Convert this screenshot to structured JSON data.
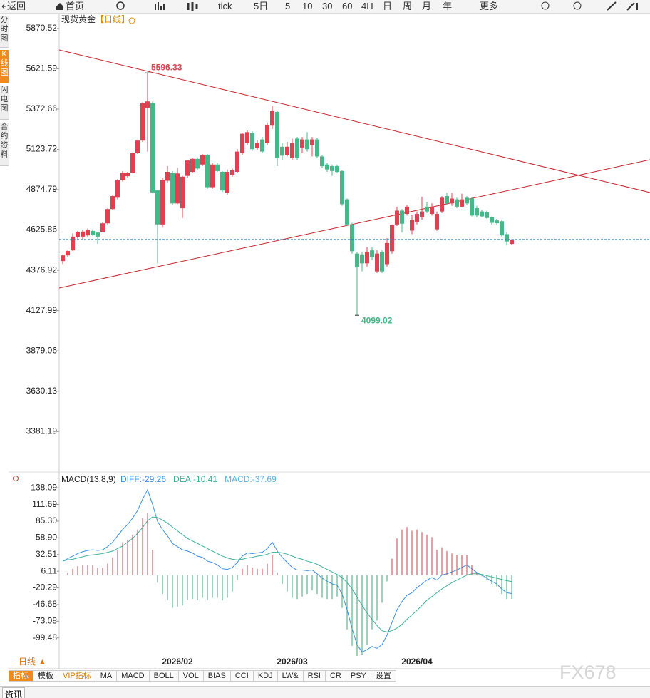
{
  "toolbar": [
    "返回",
    "首页",
    "tick",
    "5日",
    "5",
    "10",
    "30",
    "60",
    "4H",
    "日",
    "周",
    "月",
    "年",
    "更多"
  ],
  "sidebar": [
    "分时图",
    "K线图",
    "闪电图",
    "合约资料"
  ],
  "period": "日线 ▲",
  "tabs": [
    "指标",
    "模板",
    "VIP指标",
    "MA",
    "MACD",
    "BOLL",
    "VOL",
    "BIAS",
    "CCI",
    "KDJ",
    "LW&",
    "RSI",
    "CR",
    "PSY",
    "设置"
  ],
  "footer_tab": "资讯",
  "watermark": "FX678",
  "chart_data": [
    {
      "type": "candlestick",
      "title": "现货黄金",
      "subtitle": "【日线】",
      "up_color": "#e0404f",
      "down_color": "#44b886",
      "high_label": "5596.33",
      "low_label": "4099.02",
      "categories": [
        null,
        null,
        null,
        null,
        null,
        null,
        null,
        null,
        null,
        null,
        null,
        null,
        null,
        null,
        null,
        null,
        null,
        null,
        null,
        null,
        null,
        null,
        null,
        "2026/02",
        null,
        null,
        null,
        null,
        null,
        null,
        null,
        null,
        null,
        null,
        null,
        null,
        null,
        null,
        null,
        null,
        null,
        null,
        null,
        null,
        null,
        null,
        "2026/03",
        null,
        null,
        null,
        null,
        null,
        null,
        null,
        null,
        null,
        null,
        null,
        null,
        null,
        null,
        null,
        null,
        null,
        null,
        null,
        null,
        null,
        null,
        null,
        null,
        "2026/04",
        null,
        null,
        null,
        null,
        null,
        null,
        null,
        null,
        null,
        null,
        null,
        null,
        null,
        null,
        null,
        null,
        null,
        null,
        null
      ],
      "open": [
        4434,
        4469,
        4500,
        4580,
        4585,
        4592,
        4620,
        4610,
        4615,
        4667,
        4755,
        4825,
        4932,
        4958,
        4980,
        5100,
        5178,
        5380,
        5410,
        4870,
        4660,
        4930,
        4980,
        4790,
        4760,
        4960,
        4985,
        5065,
        5030,
        5090,
        4890,
        5030,
        4985,
        4855,
        4965,
        4985,
        5100,
        5165,
        5225,
        5130,
        5185,
        5165,
        5270,
        5355,
        5140,
        5090,
        5070,
        5190,
        5135,
        5185,
        5150,
        5185,
        5080,
        5030,
        5020,
        5020,
        4990,
        4815,
        4660,
        4480,
        4475,
        4420,
        4500,
        4370,
        4490,
        4415,
        4495,
        4660,
        4745,
        4725,
        4622,
        4675,
        4705,
        4770,
        4725,
        4630,
        4740,
        4835,
        4790,
        4815,
        4770,
        4825,
        4820,
        4760,
        4740,
        4735,
        4705,
        4685,
        4680,
        4600,
        4540
      ],
      "high": [
        4475,
        4500,
        4605,
        4620,
        4625,
        4635,
        4630,
        4615,
        4672,
        4760,
        4840,
        4940,
        4990,
        4985,
        5105,
        5185,
        5415,
        5596.33,
        5420,
        4870,
        4950,
        5020,
        4990,
        5010,
        4960,
        5060,
        5070,
        5075,
        5095,
        5095,
        5040,
        5040,
        4990,
        5000,
        5005,
        5125,
        5225,
        5240,
        5235,
        5180,
        5200,
        5290,
        5392,
        5360,
        5165,
        5170,
        5190,
        5200,
        5200,
        5230,
        5200,
        5195,
        5090,
        5040,
        5030,
        5030,
        4995,
        4820,
        4670,
        4490,
        4490,
        4520,
        4520,
        4500,
        4500,
        4575,
        4660,
        4770,
        4755,
        4780,
        4720,
        4740,
        4830,
        4800,
        4790,
        4740,
        4835,
        4855,
        4855,
        4825,
        4850,
        4835,
        4830,
        4775,
        4750,
        4745,
        4710,
        4695,
        4690,
        4610,
        4570
      ],
      "low": [
        4416,
        4460,
        4495,
        4570,
        4570,
        4585,
        4590,
        4540,
        4610,
        4660,
        4750,
        4815,
        4925,
        4950,
        4975,
        5095,
        5170,
        5110,
        4852,
        4420,
        4640,
        4920,
        4780,
        4785,
        4700,
        4950,
        4980,
        4995,
        5020,
        4880,
        4880,
        4985,
        4860,
        4845,
        4955,
        4980,
        5090,
        5150,
        5115,
        5120,
        5100,
        5150,
        5250,
        5020,
        5060,
        5080,
        5060,
        5060,
        5100,
        5110,
        5080,
        5070,
        5010,
        4985,
        4960,
        4975,
        4775,
        4650,
        4480,
        4099.02,
        4370,
        4400,
        4440,
        4360,
        4360,
        4400,
        4480,
        4650,
        4610,
        4715,
        4600,
        4660,
        4690,
        4730,
        4715,
        4620,
        4730,
        4780,
        4775,
        4760,
        4765,
        4780,
        4710,
        4705,
        4705,
        4695,
        4660,
        4660,
        4585,
        4530,
        4535
      ],
      "close": [
        4469,
        4496,
        4585,
        4614,
        4616,
        4627,
        4595,
        4585,
        4667,
        4755,
        4835,
        4932,
        4980,
        4980,
        5100,
        5178,
        5408,
        5420,
        4858,
        4660,
        4935,
        4985,
        4790,
        4975,
        4955,
        5055,
        5065,
        5005,
        5090,
        4890,
        5030,
        4990,
        4870,
        4985,
        4995,
        5110,
        5220,
        5230,
        5125,
        5165,
        5110,
        5275,
        5360,
        5070,
        5085,
        5140,
        5165,
        5070,
        5185,
        5125,
        5185,
        5080,
        5020,
        5000,
        4990,
        4985,
        4785,
        4660,
        4495,
        4395,
        4420,
        4492,
        4460,
        4480,
        4370,
        4545,
        4655,
        4745,
        4665,
        4770,
        4690,
        4725,
        4740,
        4740,
        4770,
        4725,
        4825,
        4790,
        4820,
        4770,
        4815,
        4790,
        4715,
        4715,
        4710,
        4700,
        4670,
        4668,
        4592,
        4555,
        4567
      ],
      "ylim": [
        3140,
        5967
      ],
      "yticks": [
        5870.52,
        5621.59,
        5372.66,
        5123.72,
        4874.79,
        4625.86,
        4376.92,
        4127.99,
        3879.06,
        3630.13,
        3381.19
      ]
    },
    {
      "type": "macd",
      "title": "MACD(13,8,9)",
      "series": [
        {
          "name": "DIFF:-29.26",
          "color": "#3a8ee6",
          "values": [
            22,
            26,
            30,
            34,
            37,
            39,
            40,
            39,
            40,
            45,
            52,
            62,
            72,
            80,
            90,
            102,
            120,
            135,
            112,
            85,
            72,
            62,
            50,
            45,
            40,
            38,
            35,
            30,
            28,
            22,
            20,
            16,
            10,
            9,
            12,
            20,
            30,
            35,
            34,
            35,
            36,
            42,
            52,
            38,
            28,
            20,
            12,
            8,
            8,
            7,
            8,
            2,
            -5,
            -10,
            -14,
            -16,
            -30,
            -55,
            -85,
            -110,
            -122,
            -118,
            -113,
            -116,
            -110,
            -95,
            -75,
            -55,
            -42,
            -32,
            -28,
            -20,
            -14,
            -8,
            -4,
            -8,
            0,
            2,
            5,
            8,
            12,
            16,
            10,
            4,
            0,
            -5,
            -10,
            -14,
            -22,
            -28,
            -29.26
          ]
        },
        {
          "name": "DEA:-10.41",
          "color": "#3cb39a",
          "values": [
            22,
            24,
            25,
            27,
            29,
            31,
            32,
            33,
            34,
            36,
            38,
            42,
            46,
            52,
            58,
            66,
            75,
            86,
            92,
            91,
            87,
            82,
            76,
            70,
            64,
            58,
            54,
            50,
            46,
            42,
            38,
            34,
            30,
            27,
            25,
            24,
            25,
            27,
            28,
            30,
            31,
            33,
            36,
            36,
            35,
            33,
            30,
            27,
            25,
            22,
            20,
            17,
            13,
            9,
            5,
            1,
            -4,
            -12,
            -22,
            -35,
            -48,
            -60,
            -70,
            -80,
            -88,
            -90,
            -88,
            -84,
            -78,
            -70,
            -63,
            -56,
            -48,
            -40,
            -34,
            -28,
            -22,
            -17,
            -12,
            -8,
            -4,
            0,
            2,
            2,
            1,
            -1,
            -3,
            -5,
            -7,
            -9,
            -10.41
          ]
        },
        {
          "name": "MACD:-37.69",
          "type": "histogram",
          "color": "#5ab0e0",
          "up_color": "#c9434f",
          "down_color": "#3fa676",
          "values": [
            0,
            4,
            10,
            14,
            16,
            16,
            16,
            12,
            12,
            18,
            28,
            40,
            52,
            56,
            64,
            72,
            90,
            98,
            40,
            -12,
            -30,
            -40,
            -52,
            -50,
            -48,
            -40,
            -38,
            -40,
            -36,
            -40,
            -36,
            -36,
            -40,
            -36,
            -26,
            -8,
            10,
            16,
            12,
            10,
            10,
            18,
            32,
            4,
            -14,
            -26,
            -36,
            -38,
            -34,
            -30,
            -24,
            -30,
            -36,
            -38,
            -38,
            -34,
            -52,
            -86,
            -112,
            -128,
            -126,
            -110,
            -86,
            -72,
            -44,
            -10,
            26,
            58,
            72,
            76,
            70,
            72,
            68,
            64,
            60,
            40,
            44,
            38,
            34,
            32,
            32,
            32,
            16,
            4,
            -2,
            -8,
            -14,
            -18,
            -30,
            -38,
            -37.69
          ]
        }
      ],
      "ylim": [
        -128,
        162
      ],
      "yticks": [
        138.09,
        111.69,
        {
          "value": 85.3,
          "label": "85.30"
        },
        {
          "value": 58.9,
          "label": "58.90"
        },
        32.51,
        6.11,
        -20.29,
        -46.68,
        -73.08,
        -99.48
      ]
    }
  ]
}
